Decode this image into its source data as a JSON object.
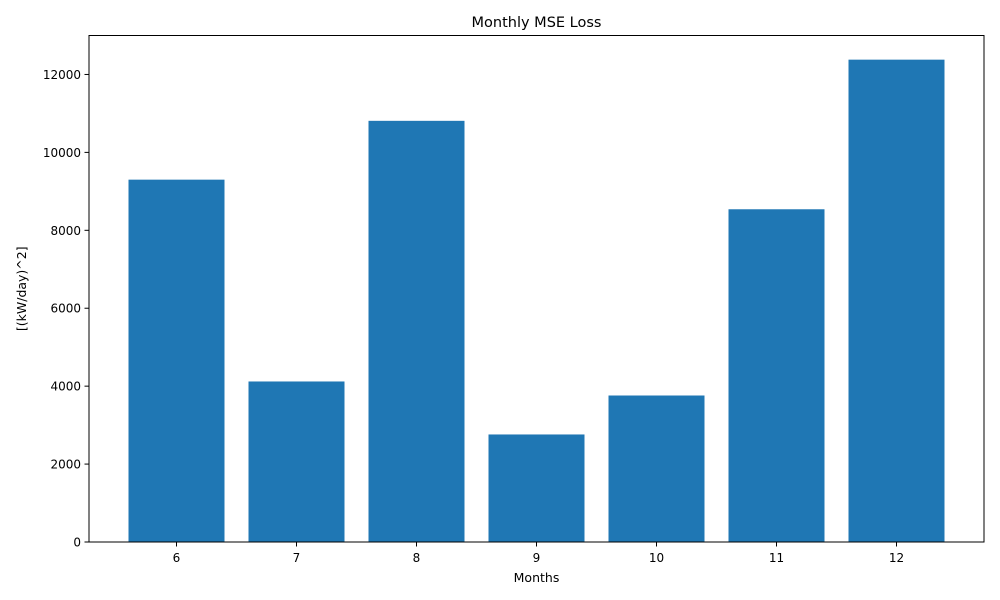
{
  "chart_data": {
    "type": "bar",
    "title": "Monthly MSE Loss",
    "xlabel": "Months",
    "ylabel": "[(kW/day)^2]",
    "categories": [
      "6",
      "7",
      "8",
      "9",
      "10",
      "11",
      "12"
    ],
    "values": [
      9300,
      4120,
      10810,
      2760,
      3760,
      8540,
      12380
    ],
    "ylim": [
      0,
      13000
    ],
    "yticks": [
      0,
      2000,
      4000,
      6000,
      8000,
      10000,
      12000
    ],
    "bar_color": "#1f77b4",
    "grid": false
  }
}
